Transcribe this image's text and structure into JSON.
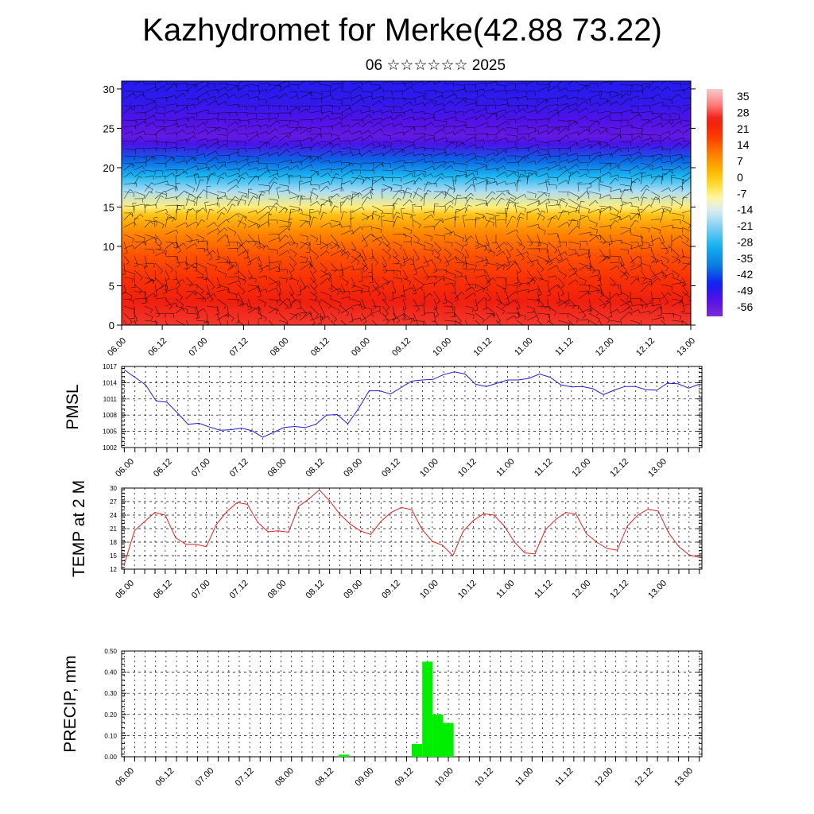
{
  "title": "Kazhydromet for Merke(42.88 73.22)",
  "subtitle": "06 ☆☆☆☆☆☆ 2025",
  "time_labels": [
    "06.00",
    "06.12",
    "07.00",
    "07.12",
    "08.00",
    "08.12",
    "09.00",
    "09.12",
    "10.00",
    "10.12",
    "11.00",
    "11.12",
    "12.00",
    "12.12",
    "13.00"
  ],
  "colors": {
    "pmsl_line": "#1f1fd0",
    "temp_line": "#e02020",
    "precip_bar": "#00ee00",
    "wind_barb": "#000000"
  },
  "chart_data": [
    {
      "type": "heatmap",
      "name": "temperature cross-section with wind barbs",
      "x_labels": [
        "06.00",
        "06.12",
        "07.00",
        "07.12",
        "08.00",
        "08.12",
        "09.00",
        "09.12",
        "10.00",
        "10.12",
        "11.00",
        "11.12",
        "12.00",
        "12.12",
        "13.00"
      ],
      "yticks": [
        0,
        5,
        10,
        15,
        20,
        25,
        30
      ],
      "ylim": [
        0,
        31
      ],
      "colorbar_labels": [
        "35",
        "28",
        "21",
        "14",
        "7",
        "0",
        "-7",
        "-14",
        "-21",
        "-28",
        "-35",
        "-42",
        "-49",
        "-56"
      ],
      "colorbar_range": [
        -63,
        42
      ],
      "level_temperature_profile": [
        [
          0,
          30
        ],
        [
          3,
          27
        ],
        [
          6,
          22
        ],
        [
          9,
          17
        ],
        [
          12,
          10
        ],
        [
          14,
          2
        ],
        [
          15,
          -6
        ],
        [
          17,
          -18
        ],
        [
          19,
          -30
        ],
        [
          21,
          -42
        ],
        [
          23,
          -54
        ],
        [
          24,
          -58
        ],
        [
          26,
          -55
        ],
        [
          28,
          -52
        ],
        [
          31,
          -50
        ]
      ],
      "wind_barbs": true
    },
    {
      "type": "line",
      "ylabel": "PMSL",
      "ylim": [
        1002,
        1017
      ],
      "yticks": [
        1002,
        1005,
        1008,
        1011,
        1014,
        1017
      ],
      "x_labels": [
        "06.00",
        "06.12",
        "07.00",
        "07.12",
        "08.00",
        "08.12",
        "09.00",
        "09.12",
        "10.00",
        "10.12",
        "11.00",
        "11.12",
        "12.00",
        "12.12",
        "13.00"
      ],
      "grid": true,
      "values": [
        1016.4,
        1015.0,
        1013.6,
        1010.6,
        1010.4,
        1008.4,
        1006.3,
        1006.5,
        1005.8,
        1005.2,
        1005.3,
        1005.6,
        1005.1,
        1003.9,
        1004.8,
        1005.7,
        1005.9,
        1005.7,
        1006.3,
        1008.0,
        1008.1,
        1006.4,
        1009.2,
        1012.5,
        1012.5,
        1011.9,
        1013.1,
        1014.3,
        1014.5,
        1014.6,
        1015.5,
        1016.0,
        1015.6,
        1013.7,
        1013.3,
        1013.9,
        1014.5,
        1014.5,
        1014.8,
        1015.6,
        1015.0,
        1013.6,
        1013.2,
        1013.3,
        1012.9,
        1011.8,
        1012.6,
        1013.3,
        1013.3,
        1012.7,
        1012.6,
        1013.9,
        1013.8,
        1013.0,
        1013.7
      ]
    },
    {
      "type": "line",
      "ylabel": "TEMP at 2 M",
      "ylim": [
        12,
        30
      ],
      "yticks": [
        12,
        15,
        18,
        21,
        24,
        27,
        30
      ],
      "x_labels": [
        "06.00",
        "06.12",
        "07.00",
        "07.12",
        "08.00",
        "08.12",
        "09.00",
        "09.12",
        "10.00",
        "10.12",
        "11.00",
        "11.12",
        "12.00",
        "12.12",
        "13.00"
      ],
      "grid": true,
      "values": [
        13.0,
        20.5,
        22.6,
        24.6,
        24.0,
        19.0,
        17.5,
        17.5,
        17.0,
        22.0,
        24.8,
        26.8,
        26.4,
        22.4,
        20.3,
        20.5,
        20.2,
        26.0,
        27.6,
        29.6,
        27.2,
        24.2,
        22.0,
        20.5,
        19.7,
        22.6,
        24.6,
        25.7,
        25.2,
        20.8,
        18.2,
        17.3,
        15.0,
        20.4,
        22.8,
        24.3,
        24.0,
        21.6,
        18.0,
        15.6,
        15.4,
        20.7,
        23.0,
        24.6,
        24.2,
        19.9,
        18.0,
        16.6,
        16.2,
        21.6,
        24.0,
        25.3,
        24.9,
        20.1,
        17.0,
        15.2,
        14.6
      ]
    },
    {
      "type": "bar",
      "ylabel": "PRECIP, mm",
      "ylim": [
        0,
        0.5
      ],
      "yticks": [
        "0.00",
        "0.10",
        "0.20",
        "0.30",
        "0.40",
        "0.50"
      ],
      "x_labels": [
        "06.00",
        "06.12",
        "07.00",
        "07.12",
        "08.00",
        "08.12",
        "09.00",
        "09.12",
        "10.00",
        "10.12",
        "11.00",
        "11.12",
        "12.00",
        "12.12",
        "13.00"
      ],
      "grid": true,
      "values": [
        0,
        0,
        0,
        0,
        0,
        0,
        0,
        0,
        0,
        0,
        0,
        0,
        0,
        0,
        0,
        0,
        0,
        0,
        0,
        0,
        0,
        0.01,
        0,
        0,
        0,
        0,
        0,
        0,
        0.06,
        0.45,
        0.2,
        0.16,
        0,
        0,
        0,
        0,
        0,
        0,
        0,
        0,
        0,
        0,
        0,
        0,
        0,
        0,
        0,
        0,
        0,
        0,
        0,
        0,
        0,
        0,
        0,
        0
      ]
    }
  ]
}
